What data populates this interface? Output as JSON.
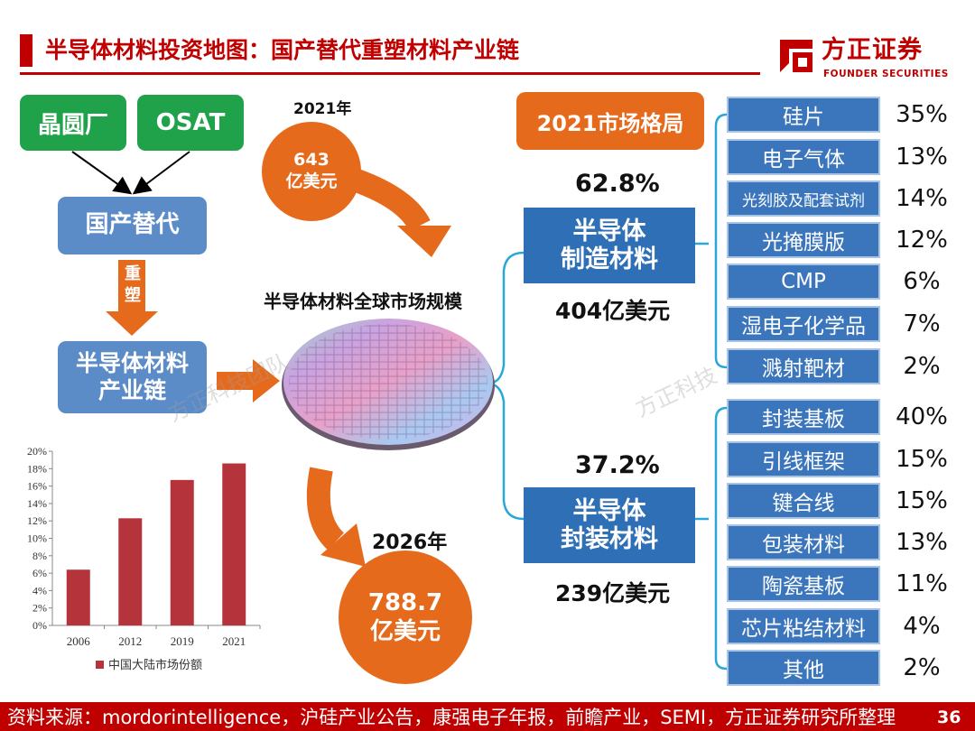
{
  "header": {
    "title": "半导体材料投资地图：国产替代重塑材料产业链",
    "logo_cn": "方正证券",
    "logo_en": "FOUNDER SECURITIES",
    "accent": "#c00000"
  },
  "left_flow": {
    "wafer_fab": "晶圆厂",
    "osat": "OSAT",
    "domestic_sub": "国产替代",
    "reshape": "重塑",
    "chain_line1": "半导体材料",
    "chain_line2": "产业链"
  },
  "market": {
    "year_2021": "2021年",
    "value_2021_line1": "643",
    "value_2021_line2": "亿美元",
    "global_label": "半导体材料全球市场规模",
    "year_2026": "2026年",
    "value_2026_line1": "788.7",
    "value_2026_line2": "亿美元"
  },
  "structure": {
    "header": "2021市场格局",
    "manufacturing": {
      "share": "62.8%",
      "line1": "半导体",
      "line2": "制造材料",
      "value": "404亿美元",
      "items": [
        {
          "name": "硅片",
          "pct": "35%"
        },
        {
          "name": "电子气体",
          "pct": "13%"
        },
        {
          "name": "光刻胶及配套试剂",
          "pct": "14%"
        },
        {
          "name": "光掩膜版",
          "pct": "12%"
        },
        {
          "name": "CMP",
          "pct": "6%"
        },
        {
          "name": "湿电子化学品",
          "pct": "7%"
        },
        {
          "name": "溅射靶材",
          "pct": "2%"
        }
      ]
    },
    "packaging": {
      "share": "37.2%",
      "line1": "半导体",
      "line2": "封装材料",
      "value": "239亿美元",
      "items": [
        {
          "name": "封装基板",
          "pct": "40%"
        },
        {
          "name": "引线框架",
          "pct": "15%"
        },
        {
          "name": "键合线",
          "pct": "15%"
        },
        {
          "name": "包装材料",
          "pct": "13%"
        },
        {
          "name": "陶瓷基板",
          "pct": "11%"
        },
        {
          "name": "芯片粘结材料",
          "pct": "4%"
        },
        {
          "name": "其他",
          "pct": "2%"
        }
      ]
    }
  },
  "chart_data": {
    "type": "bar",
    "categories": [
      "2006",
      "2012",
      "2019",
      "2021"
    ],
    "series": [
      {
        "name": "中国大陆市场份额",
        "values": [
          0.064,
          0.123,
          0.167,
          0.186
        ]
      }
    ],
    "ylim": [
      0,
      0.2
    ],
    "yticks": [
      "0%",
      "2%",
      "4%",
      "6%",
      "8%",
      "10%",
      "12%",
      "14%",
      "16%",
      "18%",
      "20%"
    ],
    "bar_color": "#b5343c",
    "legend": "bottom"
  },
  "watermarks": [
    "方正科技团队",
    "方正科技"
  ],
  "footer": {
    "source": "资料来源：mordorintelligence，沪硅产业公告，康强电子年报，前瞻产业，SEMI，方正证券研究所整理",
    "page": "36"
  }
}
